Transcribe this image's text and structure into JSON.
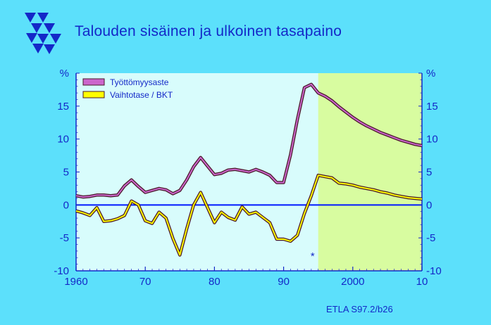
{
  "page": {
    "title": "Talouden sisäinen ja ulkoinen tasapaino",
    "source_label": "ETLA S97.2/b26",
    "forecast_marker": "*"
  },
  "colors": {
    "background": "#5ce0fb",
    "plot_area": "#d8fcfc",
    "forecast_area": "#d8fca0",
    "text": "#1428c8",
    "series_unemployment": "#cc66cc",
    "series_current_account": "#ffff00",
    "series_outline": "#4a1a2a",
    "zero_line": "#0018ff"
  },
  "chart_data": {
    "type": "line",
    "title": "Talouden sisäinen ja ulkoinen tasapaino",
    "x_ticks": [
      "1960",
      "70",
      "80",
      "90",
      "2000",
      "10"
    ],
    "x_tick_values": [
      1960,
      1970,
      1980,
      1990,
      2000,
      2010
    ],
    "y_ticks": [
      "-10",
      "-5",
      "0",
      "5",
      "10",
      "15",
      "%"
    ],
    "y_tick_values": [
      -10,
      -5,
      0,
      5,
      10,
      15,
      20
    ],
    "ylim": [
      -10,
      20
    ],
    "xlim": [
      1960,
      2010
    ],
    "forecast_from": 1995,
    "grid": false,
    "legend_position": "top-left",
    "series": [
      {
        "name": "Työttömyysaste",
        "color": "#cc66cc",
        "x": [
          1960,
          1961,
          1962,
          1963,
          1964,
          1965,
          1966,
          1967,
          1968,
          1969,
          1970,
          1971,
          1972,
          1973,
          1974,
          1975,
          1976,
          1977,
          1978,
          1979,
          1980,
          1981,
          1982,
          1983,
          1984,
          1985,
          1986,
          1987,
          1988,
          1989,
          1990,
          1991,
          1992,
          1993,
          1994,
          1995,
          1996,
          1997,
          1998,
          1999,
          2000,
          2001,
          2002,
          2003,
          2004,
          2005,
          2006,
          2007,
          2008,
          2009,
          2010
        ],
        "values": [
          1.4,
          1.2,
          1.3,
          1.5,
          1.5,
          1.4,
          1.5,
          2.9,
          3.8,
          2.8,
          1.9,
          2.2,
          2.5,
          2.3,
          1.7,
          2.2,
          3.8,
          5.8,
          7.2,
          5.9,
          4.6,
          4.8,
          5.3,
          5.4,
          5.2,
          5.0,
          5.4,
          5.0,
          4.5,
          3.4,
          3.4,
          7.6,
          13.0,
          17.8,
          18.3,
          17.0,
          16.5,
          15.8,
          14.9,
          14.1,
          13.3,
          12.6,
          12.0,
          11.5,
          11.0,
          10.6,
          10.2,
          9.8,
          9.5,
          9.2,
          9.0
        ]
      },
      {
        "name": "Vaihtotase / BKT",
        "color": "#ffff00",
        "x": [
          1960,
          1961,
          1962,
          1963,
          1964,
          1965,
          1966,
          1967,
          1968,
          1969,
          1970,
          1971,
          1972,
          1973,
          1974,
          1975,
          1976,
          1977,
          1978,
          1979,
          1980,
          1981,
          1982,
          1983,
          1984,
          1985,
          1986,
          1987,
          1988,
          1989,
          1990,
          1991,
          1992,
          1993,
          1994,
          1995,
          1996,
          1997,
          1998,
          1999,
          2000,
          2001,
          2002,
          2003,
          2004,
          2005,
          2006,
          2007,
          2008,
          2009,
          2010
        ],
        "values": [
          -0.9,
          -1.2,
          -1.6,
          -0.4,
          -2.5,
          -2.4,
          -2.1,
          -1.6,
          0.6,
          0.0,
          -2.4,
          -2.8,
          -1.1,
          -2.0,
          -5.1,
          -7.6,
          -3.6,
          0.0,
          1.9,
          -0.4,
          -2.7,
          -1.1,
          -1.9,
          -2.3,
          -0.3,
          -1.4,
          -1.1,
          -1.9,
          -2.7,
          -5.2,
          -5.2,
          -5.5,
          -4.6,
          -1.3,
          1.4,
          4.5,
          4.3,
          4.1,
          3.3,
          3.2,
          3.0,
          2.7,
          2.5,
          2.3,
          2.0,
          1.8,
          1.5,
          1.3,
          1.1,
          1.0,
          0.9
        ]
      }
    ]
  }
}
